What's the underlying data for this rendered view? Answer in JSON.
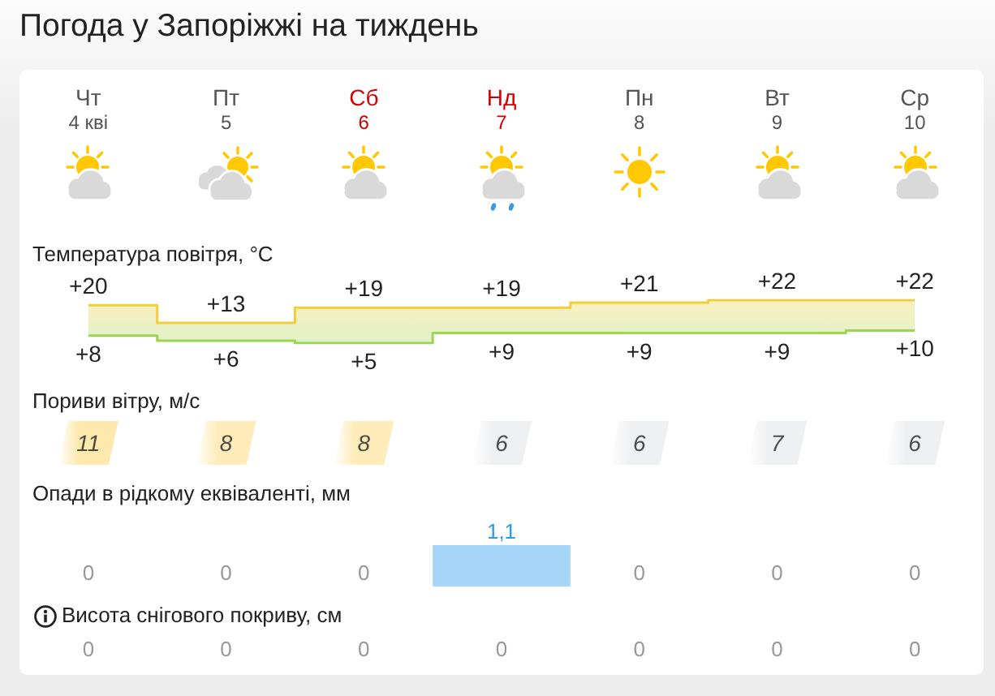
{
  "chart_data": [
    {
      "type": "step",
      "title": "Погода у Запоріжжі на тиждень",
      "subtitle": "Температура повітря, °C",
      "categories": [
        "Чт\n4 кві",
        "Пт\n5",
        "Сб\n6",
        "Нд\n7",
        "Пн\n8",
        "Вт\n9",
        "Ср\n10"
      ],
      "series": [
        {
          "color": "#f2cf3a",
          "values": [
            20,
            13,
            19,
            19,
            21,
            22,
            22
          ],
          "value_labels": [
            "+20",
            "+13",
            "+19",
            "+19",
            "+21",
            "+22",
            "+22"
          ]
        },
        {
          "color": "#9ad650",
          "values": [
            8,
            6,
            5,
            9,
            9,
            9,
            10
          ],
          "value_labels": [
            "+8",
            "+6",
            "+5",
            "+9",
            "+9",
            "+9",
            "+10"
          ]
        }
      ],
      "tick_labels": "x"
    },
    {
      "type": "heatmap",
      "title": "Пориви вітру, м/с",
      "categories": [
        null,
        null,
        null,
        null,
        null,
        null,
        null
      ],
      "y_categories": [
        null
      ],
      "cells": [
        [
          11,
          8,
          8,
          6,
          6,
          7,
          6
        ]
      ],
      "colors": [
        "#fde39a",
        "#fde7a8",
        "#fde7a8",
        "#ebecee",
        "#ebecee",
        "#ebecee",
        "#ebecee"
      ],
      "data_labels": true,
      "tick_labels": false
    },
    {
      "type": "bar",
      "title": "Опади в рідкому еквіваленті, мм",
      "categories": [
        null,
        null,
        null,
        null,
        null,
        null,
        null
      ],
      "values": [
        0,
        0,
        0,
        1.1,
        0,
        0,
        0
      ],
      "value_labels": [
        "0",
        "0",
        "0",
        "1,1",
        "0",
        "0",
        "0"
      ],
      "color": "#a6d5fa",
      "tick_labels": false
    },
    {
      "type": "other",
      "title": "Висота снігового покриву, см",
      "categories": [
        null,
        null,
        null,
        null,
        null,
        null,
        null
      ],
      "values": [
        0,
        0,
        0,
        0,
        0,
        0,
        0
      ],
      "data_labels": true
    }
  ]
}
